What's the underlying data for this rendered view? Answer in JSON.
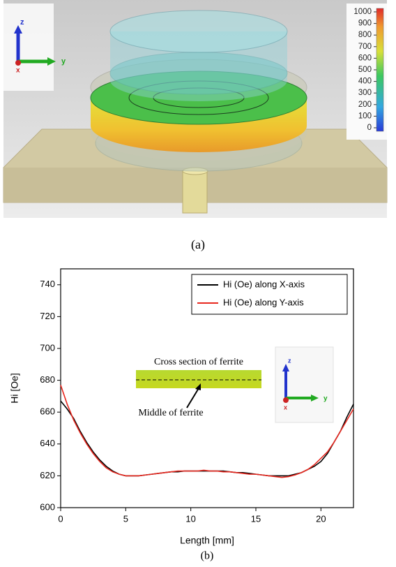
{
  "panel_a": {
    "caption": "(a)",
    "triad": {
      "z": "z",
      "y": "y",
      "x": "x"
    },
    "colorbar": {
      "lim": [
        0,
        1000
      ],
      "ticks": [
        0,
        100,
        200,
        300,
        400,
        500,
        600,
        700,
        800,
        900,
        1000
      ]
    }
  },
  "panel_b": {
    "caption": "(b)"
  },
  "chart_data": {
    "type": "line",
    "xlabel": "Length [mm]",
    "ylabel": "Hi [Oe]",
    "x": [
      0,
      0.5,
      1,
      1.5,
      2,
      2.5,
      3,
      3.5,
      4,
      4.5,
      5,
      5.5,
      6,
      6.5,
      7,
      7.5,
      8,
      8.5,
      9,
      9.5,
      10,
      10.5,
      11,
      11.5,
      12,
      12.5,
      13,
      13.5,
      14,
      14.5,
      15,
      15.5,
      16,
      16.5,
      17,
      17.5,
      18,
      18.5,
      19,
      19.5,
      20,
      20.5,
      21,
      21.5,
      22,
      22.5
    ],
    "series": [
      {
        "name": "Hi (Oe) along X-axis",
        "color": "#000000",
        "values": [
          667,
          662,
          656,
          648,
          641,
          635,
          630,
          626,
          623,
          621,
          620,
          620,
          620,
          620.5,
          621,
          621.5,
          622,
          622.5,
          622.5,
          623,
          623,
          623,
          623,
          623,
          623,
          623,
          622.5,
          622,
          622,
          621.5,
          621,
          620.5,
          620,
          620,
          620,
          620,
          621,
          622,
          624,
          626,
          629,
          634,
          641,
          648,
          657,
          665
        ]
      },
      {
        "name": "Hi (Oe) along Y-axis",
        "color": "#e8271e",
        "values": [
          677,
          665,
          655,
          647,
          640,
          634,
          629,
          625,
          622.5,
          621,
          620,
          620,
          620,
          620.5,
          621,
          621.5,
          622,
          622.5,
          623,
          623,
          623,
          623,
          623.5,
          623,
          623,
          622.5,
          622.5,
          622,
          621.5,
          621,
          621,
          620.5,
          620,
          619.5,
          619,
          619.5,
          620.5,
          622,
          624,
          627,
          631,
          635,
          641,
          648,
          655,
          662
        ]
      }
    ],
    "xlim": [
      0,
      22.5
    ],
    "xticks": [
      0,
      5,
      10,
      15,
      20
    ],
    "ylim": [
      600,
      750
    ],
    "yticks": [
      600,
      620,
      640,
      660,
      680,
      700,
      720,
      740
    ],
    "legend": "upper right",
    "inset": {
      "title": "Cross section of ferrite",
      "arrow_label": "Middle of ferrite",
      "triad": {
        "z": "z",
        "y": "y",
        "x": "x"
      }
    }
  }
}
